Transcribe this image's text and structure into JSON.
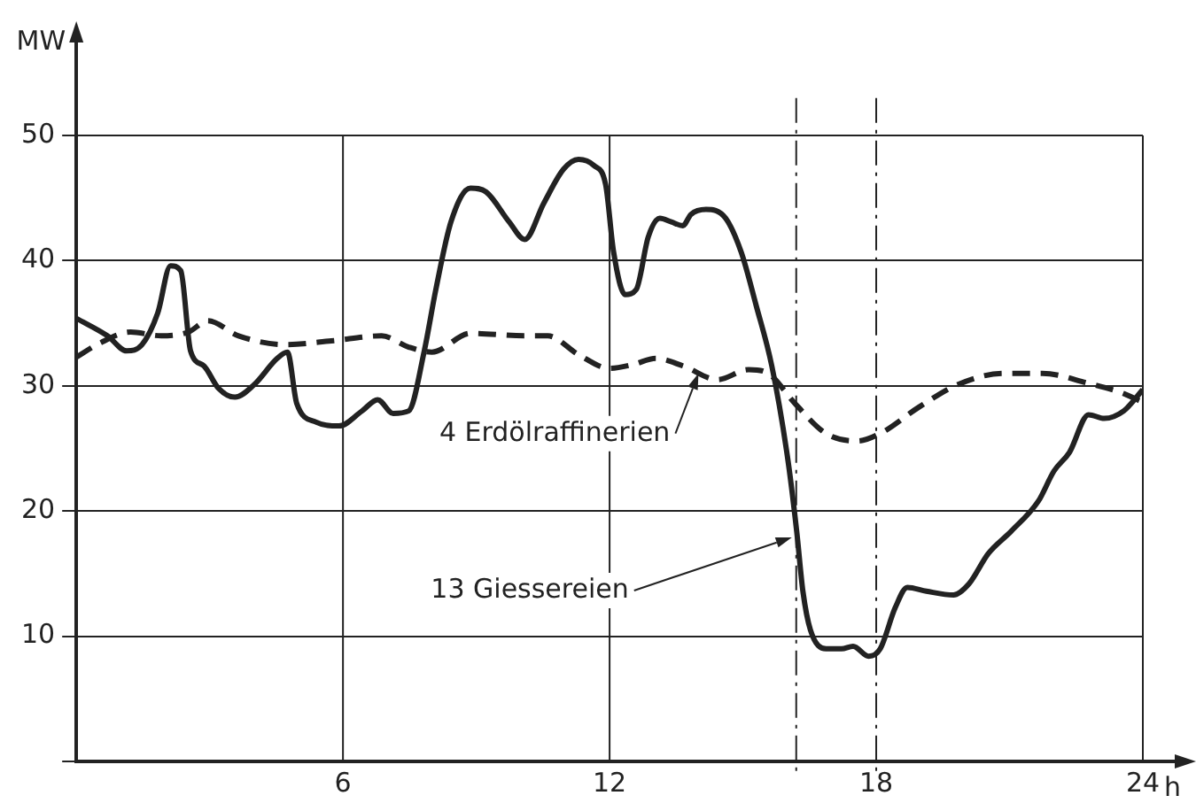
{
  "chart_data": {
    "type": "line",
    "xlabel": "h",
    "ylabel": "MW",
    "xlim": [
      0,
      24
    ],
    "ylim": [
      0,
      58
    ],
    "xticks": [
      {
        "value": 0,
        "label": null
      },
      6,
      12,
      18,
      24
    ],
    "yticks": [
      {
        "value": 0,
        "label": null
      },
      10,
      20,
      30,
      40,
      50
    ],
    "grid": true,
    "series": [
      {
        "color": "#222222",
        "line_style": "solid",
        "x": [
          0,
          0.7,
          1.13,
          1.48,
          1.83,
          2.12,
          2.35,
          2.57,
          2.87,
          3.2,
          3.57,
          4.0,
          4.52,
          4.75,
          4.96,
          5.4,
          5.91,
          6.43,
          6.78,
          7.13,
          7.48,
          7.83,
          8.09,
          8.43,
          8.87,
          9.22,
          9.74,
          10.09,
          10.52,
          10.96,
          11.3,
          11.65,
          11.91,
          12.09,
          12.35,
          12.6,
          12.87,
          13.13,
          13.39,
          13.65,
          13.83,
          14.17,
          14.61,
          14.96,
          15.3,
          15.65,
          16.0,
          16.21,
          16.35,
          16.52,
          16.87,
          17.22,
          17.48,
          17.83,
          18.09,
          18.43,
          18.7,
          19.13,
          19.74,
          20.09,
          20.52,
          21.04,
          21.65,
          22.0,
          22.35,
          22.78,
          23.13,
          23.57,
          24.0
        ],
        "values": [
          35.4,
          34.0,
          32.8,
          33.3,
          35.8,
          39.6,
          39.2,
          32.8,
          31.6,
          29.8,
          29.1,
          30.1,
          32.2,
          32.7,
          28.6,
          27.1,
          26.8,
          28.0,
          28.9,
          27.8,
          28.0,
          32.8,
          37.7,
          43.1,
          45.8,
          45.5,
          43.1,
          41.7,
          44.6,
          47.3,
          48.1,
          47.6,
          46.1,
          40.7,
          37.3,
          37.7,
          41.9,
          43.4,
          43.1,
          42.8,
          43.7,
          44.1,
          43.4,
          40.7,
          36.4,
          31.6,
          24.4,
          18.4,
          13.6,
          10.5,
          9.0,
          9.0,
          9.2,
          8.4,
          9.0,
          12.3,
          13.9,
          13.6,
          13.3,
          14.2,
          16.6,
          18.4,
          20.8,
          23.2,
          24.7,
          27.7,
          27.4,
          28.0,
          29.7
        ]
      },
      {
        "color": "#222222",
        "line_style": "dashed",
        "x": [
          0,
          0.52,
          1.22,
          1.91,
          2.52,
          2.96,
          3.65,
          4.7,
          5.74,
          6.87,
          7.48,
          8.0,
          8.87,
          10.09,
          10.61,
          11.3,
          12.0,
          12.52,
          13.04,
          13.65,
          14.43,
          15.13,
          15.57,
          16.17,
          16.87,
          17.57,
          18.09,
          18.96,
          19.83,
          20.87,
          21.74,
          22.78,
          23.48,
          24.0
        ],
        "values": [
          32.3,
          33.4,
          34.3,
          34.0,
          34.3,
          35.2,
          34.0,
          33.3,
          33.6,
          34.0,
          33.1,
          32.7,
          34.2,
          34.0,
          34.0,
          32.5,
          31.4,
          31.7,
          32.2,
          31.6,
          30.5,
          31.3,
          31.0,
          28.6,
          26.2,
          25.6,
          26.2,
          28.3,
          30.1,
          31.0,
          31.0,
          30.2,
          29.5,
          28.7
        ]
      }
    ],
    "ref_lines": [
      {
        "axis": "x",
        "value": 16.2,
        "line_style": "dashed",
        "color": "#222222"
      },
      {
        "axis": "x",
        "value": 18,
        "line_style": "dashed",
        "color": "#222222"
      }
    ],
    "annotations": [
      {
        "text": "4 Erdölraffinerien",
        "x": 14,
        "y": 31
      },
      {
        "text": "13 Giessereien",
        "x": 16.1,
        "y": 17.9
      }
    ]
  }
}
